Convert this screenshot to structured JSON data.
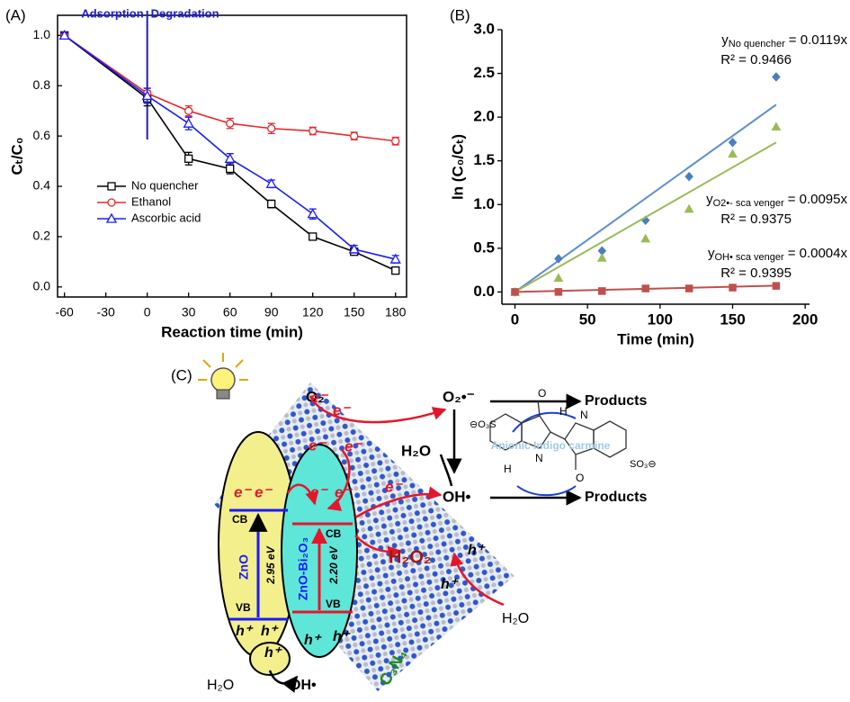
{
  "chart_data": [
    {
      "type": "line",
      "panel": "(A)",
      "ylabel": "Cₜ/C₀",
      "xlabel": "Reaction time (min)",
      "xlim": [
        -65,
        188
      ],
      "ylim": [
        -0.04,
        1.08
      ],
      "xticks": [
        -60,
        -30,
        0,
        30,
        60,
        90,
        120,
        150,
        180
      ],
      "yticks": [
        {
          "value": 0,
          "label": "0.0"
        },
        0.2,
        0.4,
        0.6,
        0.8,
        {
          "value": 1,
          "label": "1.0"
        }
      ],
      "x": [
        -60,
        0,
        30,
        60,
        90,
        120,
        150,
        180
      ],
      "divider_x": 0,
      "divider_color": "#1a1adb",
      "annotations": [
        "Adsorption",
        "Degradation"
      ],
      "legend": "lower left",
      "series": [
        {
          "name": "No quencher",
          "color": "#000000",
          "marker": "square",
          "values": [
            1.0,
            0.75,
            0.51,
            0.47,
            0.33,
            0.2,
            0.14,
            0.065
          ],
          "errors": [
            0.01,
            0.03,
            0.025,
            0.02,
            0.015,
            0.01,
            0.01,
            0.01
          ]
        },
        {
          "name": "Ethanol",
          "color": "#e8262a",
          "marker": "circle",
          "values": [
            1.0,
            0.77,
            0.7,
            0.65,
            0.63,
            0.62,
            0.6,
            0.58
          ],
          "errors": [
            0.01,
            0.02,
            0.02,
            0.02,
            0.02,
            0.015,
            0.015,
            0.015
          ]
        },
        {
          "name": "Ascorbic acid",
          "color": "#1a1aff",
          "marker": "triangle",
          "values": [
            1.0,
            0.76,
            0.65,
            0.51,
            0.41,
            0.29,
            0.15,
            0.11
          ],
          "errors": [
            0.01,
            0.03,
            0.025,
            0.02,
            0.015,
            0.02,
            0.015,
            0.015
          ]
        }
      ]
    },
    {
      "type": "scatter",
      "panel": "(B)",
      "ylabel": "ln (C₀/Cₜ)",
      "xlabel": "Time (min)",
      "xlim": [
        -9,
        203
      ],
      "ylim": [
        -0.14,
        3.0
      ],
      "xticks": [
        0,
        50,
        100,
        150,
        200
      ],
      "yticks": [
        {
          "value": 0,
          "label": "0.0"
        },
        0.5,
        {
          "value": 1,
          "label": "1.0"
        },
        1.5,
        {
          "value": 2,
          "label": "2.0"
        },
        2.5,
        {
          "value": 3,
          "label": "3.0"
        }
      ],
      "x": [
        0,
        30,
        60,
        90,
        120,
        150,
        180
      ],
      "fit_symbol": "y",
      "series": [
        {
          "name": "No quencher",
          "color": "#4a7fc1",
          "line_color": "#5b8fd0",
          "marker": "diamond",
          "values": [
            0,
            0.38,
            0.47,
            0.82,
            1.32,
            1.71,
            2.46
          ],
          "slope": 0.0119,
          "fit_label": "= 0.0119x",
          "r2_label": "R² = 0.9466"
        },
        {
          "name": "O2•- sca venger",
          "color": "#9bbb59",
          "line_color": "#9bbb59",
          "marker": "triangle",
          "values": [
            0,
            0.16,
            0.39,
            0.61,
            0.95,
            1.58,
            1.89
          ],
          "slope": 0.0095,
          "fit_label": "= 0.0095x",
          "r2_label": "R² = 0.9375"
        },
        {
          "name": "OH• sca venger",
          "color": "#c0504d",
          "line_color": "#c0504d",
          "marker": "square",
          "values": [
            0,
            0.0,
            0.01,
            0.04,
            0.04,
            0.05,
            0.07
          ],
          "slope": 0.0004,
          "fit_label": "= 0.0004x",
          "r2_label": "R² = 0.9395"
        }
      ]
    }
  ],
  "diagram": {
    "panel": "(C)",
    "o2": "O₂",
    "superoxide": "O₂•⁻",
    "products": [
      "Products",
      "Products"
    ],
    "water": [
      "H₂O",
      "H₂O",
      "H₂O"
    ],
    "hydroxyl": [
      "OH•",
      "OH•"
    ],
    "peroxide": "H₂O₂",
    "molecule": "Anionic Indigo carmine",
    "molecule_atoms": [
      "O",
      "H",
      "N",
      "N",
      "H",
      "O"
    ],
    "sulfonates": [
      "⊖O₃S",
      "SO₃⊖"
    ],
    "cb": [
      "CB",
      "CB"
    ],
    "vb": [
      "VB",
      "VB"
    ],
    "zno": "ZnO",
    "composite": "ZnO-Bi₂O₃",
    "gap_zno": "2.95 eV",
    "gap_composite": "2.20 eV",
    "sheet": "C₃N₄",
    "electrons": [
      "e⁻",
      "e⁻",
      "e⁻",
      "e⁻",
      "e⁻",
      "e⁻",
      "e⁻",
      "e⁻",
      "e⁻"
    ],
    "holes": [
      "h⁺",
      "h⁺",
      "h⁺",
      "h⁺",
      "h⁺",
      "h⁺",
      "h⁺"
    ]
  }
}
